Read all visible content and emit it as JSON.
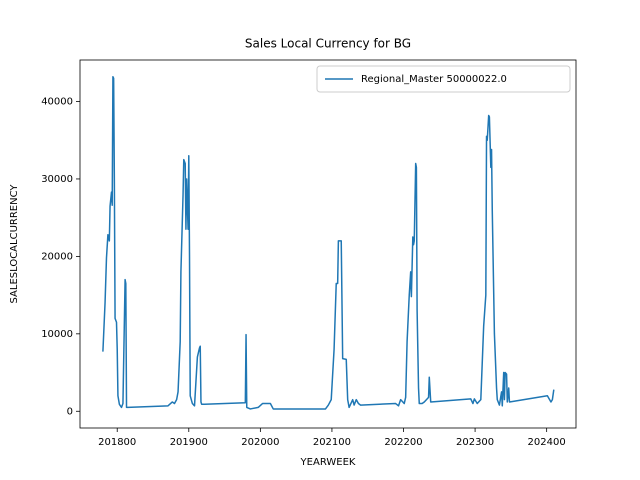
{
  "chart_data": {
    "type": "line",
    "title": "Sales Local Currency for BG",
    "xlabel": "YEARWEEK",
    "ylabel": "SALESLOCALCURRENCY",
    "x": [
      201780,
      201783,
      201785,
      201787,
      201789,
      201790,
      201792,
      201793,
      201794,
      201795,
      201796,
      201797,
      201799,
      201800,
      201801,
      201803,
      201806,
      201808,
      201811,
      201812,
      201813,
      201814,
      201815,
      201871,
      201877,
      201880,
      201883,
      201885,
      201888,
      201889,
      201892,
      201893,
      201895,
      201896,
      201897,
      201899,
      201900,
      201901,
      201902,
      201905,
      201908,
      201912,
      201915,
      201916,
      201917,
      201918,
      201922,
      201979,
      201980,
      201981,
      201986,
      201997,
      202003,
      202014,
      202018,
      202091,
      202095,
      202099,
      202103,
      202106,
      202108,
      202109,
      202113,
      202115,
      202120,
      202122,
      202124,
      202129,
      202131,
      202134,
      202137,
      202140,
      202189,
      202193,
      202196,
      202201,
      202203,
      202205,
      202208,
      202210,
      202211,
      202213,
      202214,
      202215,
      202217,
      202218,
      202219,
      202221,
      202222,
      202226,
      202229,
      202235,
      202236,
      202238,
      202294,
      202297,
      202299,
      202303,
      202308,
      202312,
      202315,
      202316,
      202317,
      202319,
      202320,
      202322,
      202323,
      202324,
      202327,
      202330,
      202331,
      202334,
      202337,
      202338,
      202340,
      202341,
      202342,
      202344,
      202345,
      202347,
      202348,
      202401,
      202406,
      202408,
      202410
    ],
    "series": [
      {
        "name": "Regional_Master 50000022.0",
        "color": "#1f77b4",
        "values": [
          7700,
          14000,
          19800,
          22800,
          22000,
          26500,
          28300,
          26600,
          43200,
          43000,
          30000,
          12000,
          11500,
          8000,
          2000,
          900,
          500,
          1000,
          17000,
          16500,
          500,
          500,
          500,
          700,
          1200,
          1000,
          1500,
          2500,
          9000,
          18000,
          28000,
          32500,
          32000,
          23500,
          30000,
          23500,
          33000,
          20000,
          2000,
          1000,
          700,
          7000,
          8200,
          8400,
          1200,
          900,
          900,
          1100,
          9900,
          500,
          300,
          500,
          1000,
          1000,
          300,
          300,
          800,
          1500,
          8000,
          16500,
          16500,
          22000,
          22000,
          6800,
          6700,
          1500,
          500,
          1500,
          800,
          1500,
          1000,
          800,
          1000,
          700,
          1500,
          1000,
          1800,
          9000,
          15000,
          18000,
          14800,
          22500,
          21500,
          22000,
          32000,
          31500,
          13000,
          3000,
          1000,
          1000,
          1200,
          1800,
          4400,
          1200,
          1600,
          1000,
          1600,
          1000,
          1500,
          11000,
          15000,
          35500,
          35000,
          38200,
          38000,
          31500,
          33800,
          26000,
          10000,
          3000,
          1500,
          800,
          2500,
          700,
          5000,
          1500,
          5000,
          4800,
          1200,
          3000,
          1200,
          2000,
          1200,
          1500,
          2800
        ]
      }
    ],
    "xlim": [
      201748,
      202441
    ],
    "xticks": [
      201800,
      201900,
      202000,
      202100,
      202200,
      202300,
      202400
    ],
    "ylim": [
      -2160,
      45360
    ],
    "yticks": [
      0,
      10000,
      20000,
      30000,
      40000
    ],
    "grid": false,
    "legend": "upper right"
  }
}
